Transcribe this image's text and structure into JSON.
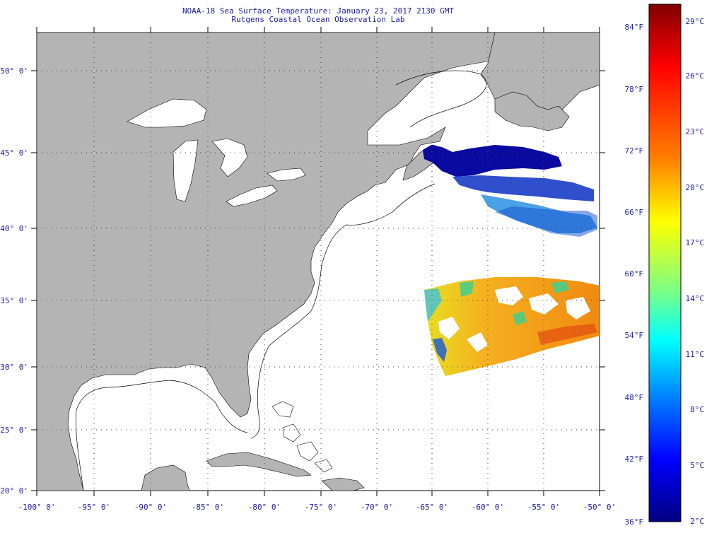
{
  "header": {
    "title": "NOAA-18 Sea Surface Temperature:  January 23, 2017 2130 GMT",
    "subtitle": "Rutgens Coastal Ocean Observation Lab"
  },
  "map": {
    "longitude_labels": [
      "-100° 0'",
      "-95° 0'",
      "-90° 0'",
      "-85° 0'",
      "-80° 0'",
      "-75° 0'",
      "-70° 0'",
      "-65° 0'",
      "-60° 0'",
      "-55° 0'",
      "-50° 0'"
    ],
    "latitude_labels": [
      "50° 0'",
      "45° 0'",
      "40° 0'",
      "35° 0'",
      "30° 0'",
      "25° 0'",
      "20° 0'"
    ],
    "colors": {
      "land": "#b4b4b4",
      "ocean": "#ffffff",
      "text": "#1a1aa8"
    }
  },
  "colorbar": {
    "fahrenheit_labels": [
      "84°F",
      "78°F",
      "72°F",
      "66°F",
      "60°F",
      "54°F",
      "48°F",
      "42°F",
      "36°F"
    ],
    "celsius_labels": [
      "29°C",
      "26°C",
      "23°C",
      "20°C",
      "17°C",
      "14°C",
      "11°C",
      "8°C",
      "5°C",
      "2°C"
    ],
    "colors_top_to_bottom": [
      "#800000",
      "#ff0000",
      "#ff8000",
      "#ffff00",
      "#80ff80",
      "#00ffff",
      "#0080ff",
      "#0000ff",
      "#000080"
    ]
  }
}
